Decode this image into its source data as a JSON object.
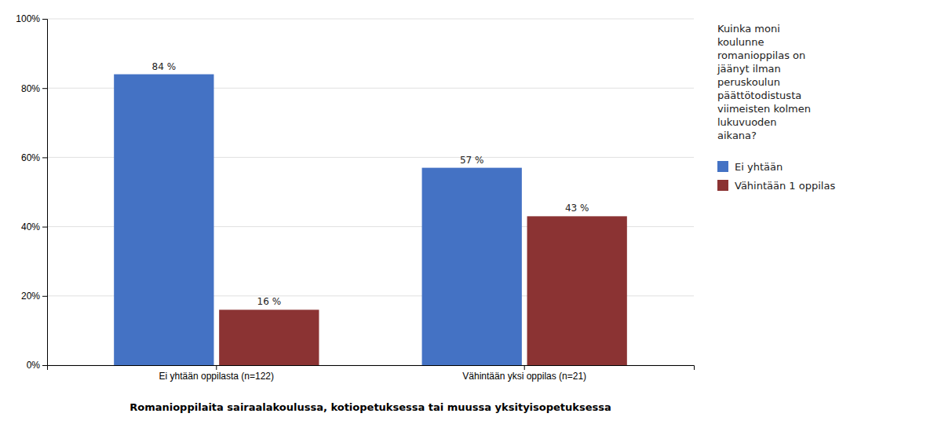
{
  "chart_data": {
    "type": "bar",
    "categories": [
      "Ei yhtään oppilasta (n=122)",
      "Vähintään yksi oppilas (n=21)"
    ],
    "series": [
      {
        "name": "Ei yhtään",
        "color": "#4472C4",
        "values": [
          84,
          57
        ],
        "value_labels": [
          "84 %",
          "57 %"
        ]
      },
      {
        "name": "Vähintään 1 oppilas",
        "color": "#8B3333",
        "values": [
          16,
          43
        ],
        "value_labels": [
          "16 %",
          "43 %"
        ]
      }
    ],
    "x_label": "Romanioppilaita sairaalakoulussa,  kotiopetuksessa tai muussa yksityisopetuksessa",
    "legend_title": "Kuinka moni\nkoulunne\nromanioppilas on\njäänyt ilman\nperuskoulun\npäättötodistusta\nviimeisten kolmen\nlukuvuoden\naikana?",
    "ylim": [
      0,
      100
    ],
    "yticks": [
      {
        "value": 0,
        "label": "0%"
      },
      {
        "value": 20,
        "label": "20%"
      },
      {
        "value": 40,
        "label": "40%"
      },
      {
        "value": 60,
        "label": "60%"
      },
      {
        "value": 80,
        "label": "80%"
      },
      {
        "value": 100,
        "label": "100%"
      }
    ],
    "grid": true,
    "data_labels": true,
    "legend": "right"
  }
}
